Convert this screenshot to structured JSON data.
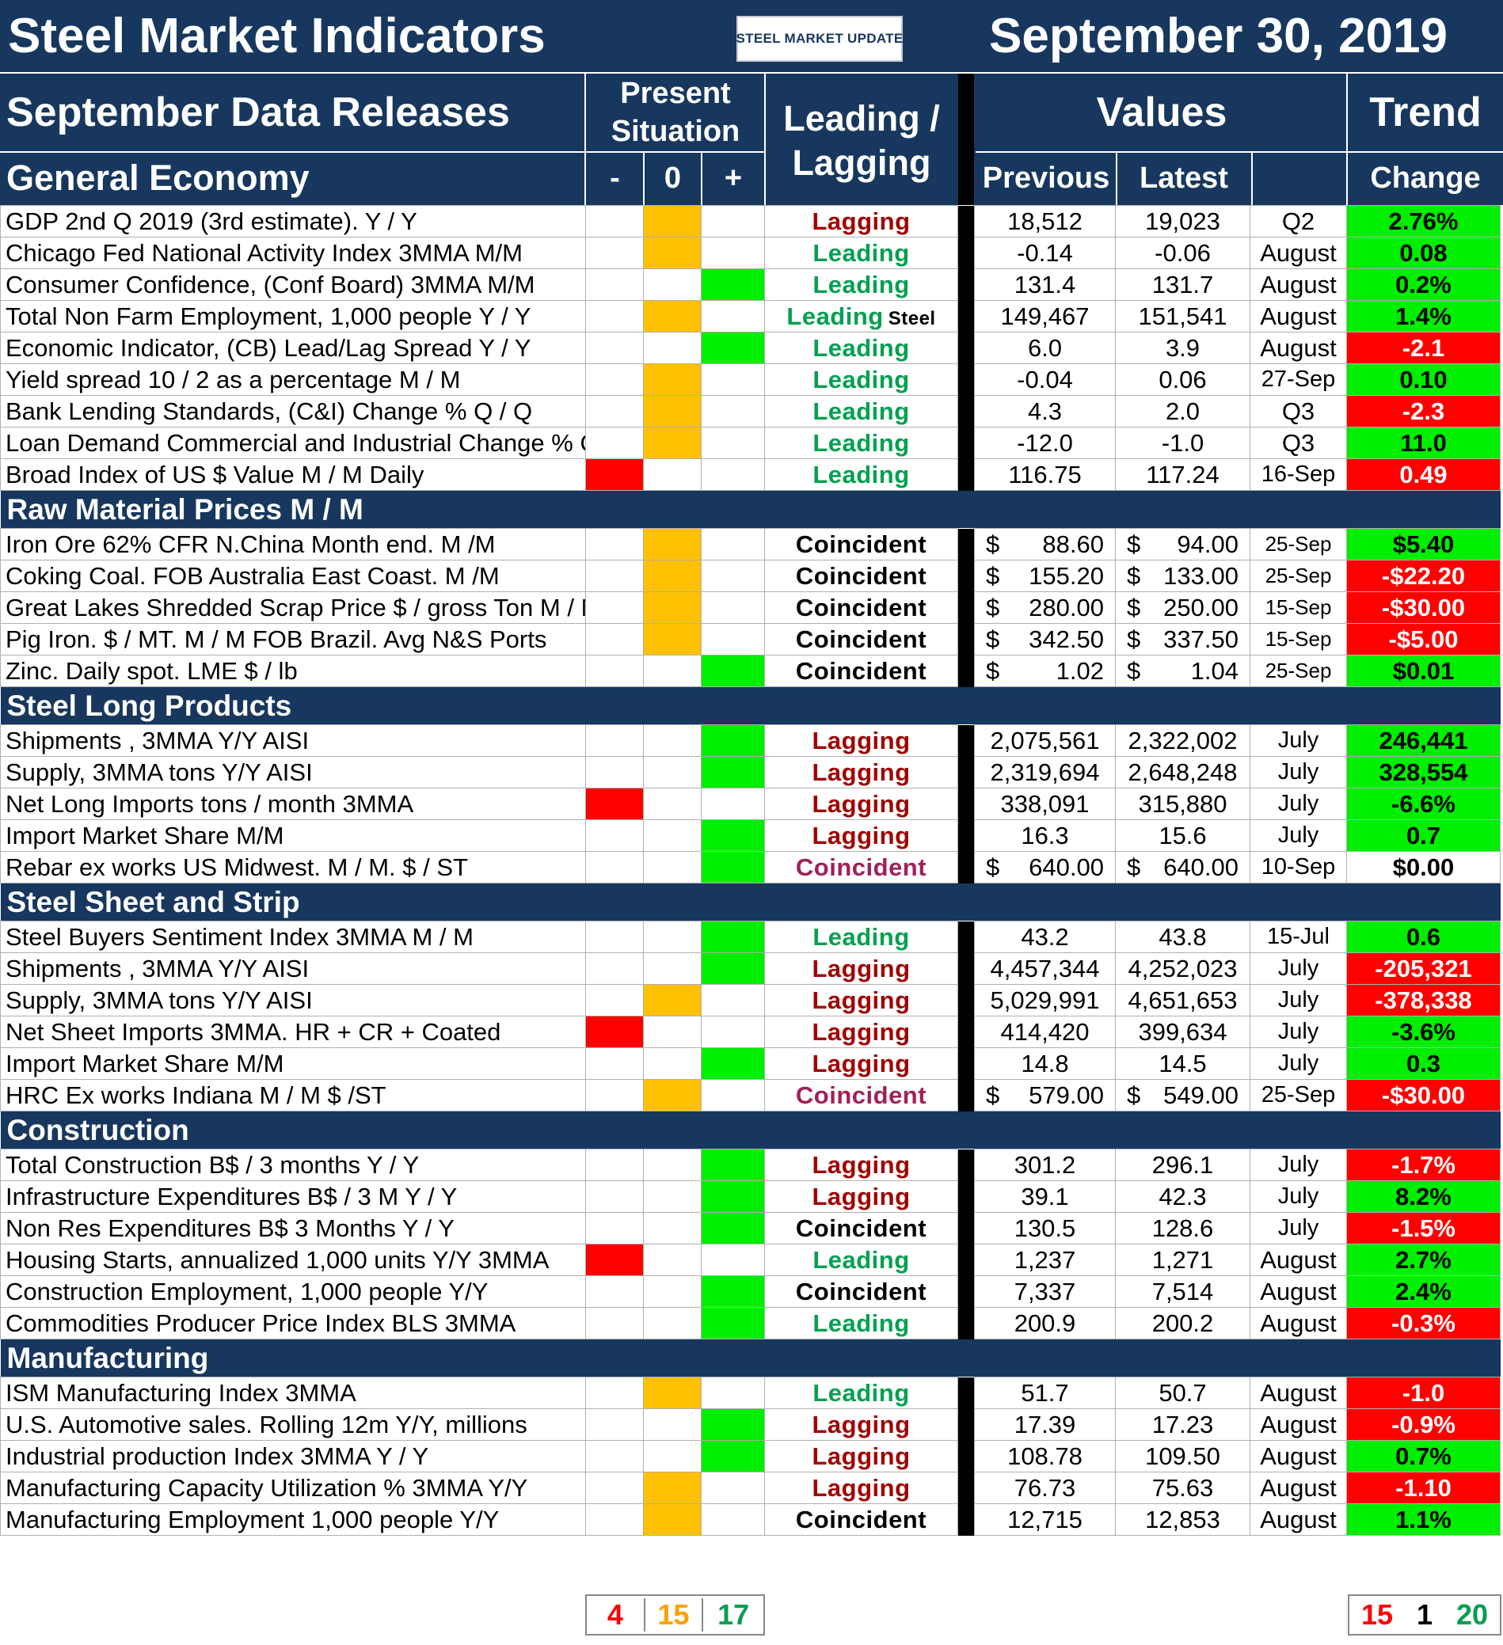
{
  "title": "Steel Market Indicators",
  "logo_text": "STEEL MARKET UPDATE",
  "date": "September 30, 2019",
  "header": {
    "releases": "September Data Releases",
    "section_first": "General Economy",
    "present": "Present Situation",
    "minus": "-",
    "zero": "0",
    "plus": "+",
    "leadlag": "Leading / Lagging",
    "values": "Values",
    "previous": "Previous",
    "latest": "Latest",
    "trend": "Trend",
    "change": "Change"
  },
  "colors": {
    "navy": "#17375e",
    "red": "#ff0000",
    "yellow": "#ffc000",
    "green": "#00ee00"
  },
  "sections": [
    {
      "name": "General Economy",
      "rows": [
        {
          "label": "GDP 2nd Q 2019 (3rd estimate). Y / Y",
          "sit": "0",
          "ll": "Lagging",
          "prev": "18,512",
          "latest": "19,023",
          "period": "Q2",
          "change": "2.76%",
          "trend": "up"
        },
        {
          "label": "Chicago Fed National Activity Index 3MMA M/M",
          "sit": "0",
          "ll": "Leading",
          "prev": "-0.14",
          "latest": "-0.06",
          "period": "August",
          "change": "0.08",
          "trend": "up"
        },
        {
          "label": "Consumer Confidence, (Conf Board) 3MMA M/M",
          "sit": "+",
          "ll": "Leading",
          "prev": "131.4",
          "latest": "131.7",
          "period": "August",
          "change": "0.2%",
          "trend": "up"
        },
        {
          "label": "Total Non Farm Employment, 1,000 people Y / Y",
          "sit": "0",
          "ll": "Leading",
          "ll_suffix": "Steel",
          "prev": "149,467",
          "latest": "151,541",
          "period": "August",
          "change": "1.4%",
          "trend": "up"
        },
        {
          "label": "Economic Indicator, (CB) Lead/Lag Spread Y / Y",
          "sit": "+",
          "ll": "Leading",
          "prev": "6.0",
          "latest": "3.9",
          "period": "August",
          "change": "-2.1",
          "trend": "down"
        },
        {
          "label": "Yield spread 10 / 2 as a percentage M / M",
          "sit": "0",
          "ll": "Leading",
          "prev": "-0.04",
          "latest": "0.06",
          "period": "27-Sep",
          "change": "0.10",
          "trend": "up"
        },
        {
          "label": "Bank Lending Standards, (C&I) Change % Q / Q",
          "sit": "0",
          "ll": "Leading",
          "prev": "4.3",
          "latest": "2.0",
          "period": "Q3",
          "change": "-2.3",
          "trend": "down"
        },
        {
          "label": "Loan Demand Commercial and Industrial Change % Q / Q",
          "sit": "0",
          "ll": "Leading",
          "prev": "-12.0",
          "latest": "-1.0",
          "period": "Q3",
          "change": "11.0",
          "trend": "up"
        },
        {
          "label": "Broad Index of US $ Value M / M Daily",
          "sit": "-",
          "ll": "Leading",
          "prev": "116.75",
          "latest": "117.24",
          "period": "16-Sep",
          "change": "0.49",
          "trend": "down"
        }
      ]
    },
    {
      "name": "Raw Material Prices M / M",
      "rows": [
        {
          "label": "Iron Ore 62% CFR N.China Month end. M /M",
          "sit": "0",
          "ll": "Coincident",
          "dollar": true,
          "prev": "88.60",
          "latest": "94.00",
          "period": "25-Sep",
          "change": "$5.40",
          "trend": "up"
        },
        {
          "label": "Coking Coal. FOB Australia East Coast. M /M",
          "sit": "0",
          "ll": "Coincident",
          "dollar": true,
          "prev": "155.20",
          "latest": "133.00",
          "period": "25-Sep",
          "change": "-$22.20",
          "trend": "down"
        },
        {
          "label": "Great Lakes Shredded Scrap Price $ / gross Ton M / M",
          "sit": "0",
          "ll": "Coincident",
          "dollar": true,
          "prev": "280.00",
          "latest": "250.00",
          "period": "15-Sep",
          "change": "-$30.00",
          "trend": "down"
        },
        {
          "label": "Pig Iron. $ / MT. M / M FOB Brazil. Avg N&S Ports",
          "sit": "0",
          "ll": "Coincident",
          "dollar": true,
          "prev": "342.50",
          "latest": "337.50",
          "period": "15-Sep",
          "change": "-$5.00",
          "trend": "down"
        },
        {
          "label": "Zinc. Daily spot. LME $ / lb",
          "sit": "+",
          "ll": "Coincident",
          "dollar": true,
          "prev": "1.02",
          "latest": "1.04",
          "period": "25-Sep",
          "change": "$0.01",
          "trend": "up"
        }
      ]
    },
    {
      "name": "Steel Long Products",
      "rows": [
        {
          "label": "Shipments , 3MMA Y/Y AISI",
          "sit": "+",
          "ll": "Lagging",
          "prev": "2,075,561",
          "latest": "2,322,002",
          "period": "July",
          "change": "246,441",
          "trend": "up"
        },
        {
          "label": "Supply, 3MMA tons Y/Y AISI",
          "sit": "+",
          "ll": "Lagging",
          "prev": "2,319,694",
          "latest": "2,648,248",
          "period": "July",
          "change": "328,554",
          "trend": "up"
        },
        {
          "label": "Net Long Imports tons / month 3MMA",
          "sit": "-",
          "ll": "Lagging",
          "prev": "338,091",
          "latest": "315,880",
          "period": "July",
          "change": "-6.6%",
          "trend": "up"
        },
        {
          "label": "Import Market Share  M/M",
          "sit": "+",
          "ll": "Lagging",
          "prev": "16.3",
          "latest": "15.6",
          "period": "July",
          "change": "0.7",
          "trend": "up"
        },
        {
          "label": "Rebar ex works US  Midwest. M / M. $ / ST",
          "sit": "+",
          "ll": "Coincident",
          "dollar": true,
          "prev": "640.00",
          "latest": "640.00",
          "period": "10-Sep",
          "change": "$0.00",
          "trend": "flat"
        }
      ]
    },
    {
      "name": "Steel Sheet and Strip",
      "rows": [
        {
          "label": "Steel Buyers Sentiment Index 3MMA M / M",
          "sit": "+",
          "ll": "Leading",
          "prev": "43.2",
          "latest": "43.8",
          "period": "15-Jul",
          "change": "0.6",
          "trend": "up"
        },
        {
          "label": "Shipments , 3MMA Y/Y AISI",
          "sit": "+",
          "ll": "Lagging",
          "prev": "4,457,344",
          "latest": "4,252,023",
          "period": "July",
          "change": "-205,321",
          "trend": "down"
        },
        {
          "label": "Supply, 3MMA tons Y/Y AISI",
          "sit": "0",
          "ll": "Lagging",
          "prev": "5,029,991",
          "latest": "4,651,653",
          "period": "July",
          "change": "-378,338",
          "trend": "down"
        },
        {
          "label": "Net Sheet Imports  3MMA. HR + CR + Coated",
          "sit": "-",
          "ll": "Lagging",
          "prev": "414,420",
          "latest": "399,634",
          "period": "July",
          "change": "-3.6%",
          "trend": "up"
        },
        {
          "label": "Import Market Share M/M",
          "sit": "+",
          "ll": "Lagging",
          "prev": "14.8",
          "latest": "14.5",
          "period": "July",
          "change": "0.3",
          "trend": "up"
        },
        {
          "label": "HRC Ex works Indiana M / M $ /ST",
          "sit": "0",
          "ll": "Coincident",
          "dollar": true,
          "prev": "579.00",
          "latest": "549.00",
          "period": "25-Sep",
          "change": "-$30.00",
          "trend": "down"
        }
      ]
    },
    {
      "name": "Construction",
      "rows": [
        {
          "label": "Total Construction B$ /  3 months Y / Y",
          "sit": "+",
          "ll": "Lagging",
          "prev": "301.2",
          "latest": "296.1",
          "period": "July",
          "change": "-1.7%",
          "trend": "down"
        },
        {
          "label": "Infrastructure Expenditures B$ / 3 M    Y / Y",
          "sit": "+",
          "ll": "Lagging",
          "prev": "39.1",
          "latest": "42.3",
          "period": "July",
          "change": "8.2%",
          "trend": "up"
        },
        {
          "label": "Non Res Expenditures B$  3 Months   Y / Y",
          "sit": "+",
          "ll": "Coincident",
          "prev": "130.5",
          "latest": "128.6",
          "period": "July",
          "change": "-1.5%",
          "trend": "down"
        },
        {
          "label": "Housing Starts, annualized 1,000 units Y/Y 3MMA",
          "sit": "-",
          "ll": "Leading",
          "prev": "1,237",
          "latest": "1,271",
          "period": "August",
          "change": "2.7%",
          "trend": "up"
        },
        {
          "label": "Construction Employment, 1,000 people Y/Y",
          "sit": "+",
          "ll": "Coincident",
          "prev": "7,337",
          "latest": "7,514",
          "period": "August",
          "change": "2.4%",
          "trend": "up"
        },
        {
          "label": "Commodities Producer Price Index BLS 3MMA",
          "sit": "+",
          "ll": "Leading",
          "prev": "200.9",
          "latest": "200.2",
          "period": "August",
          "change": "-0.3%",
          "trend": "down"
        }
      ]
    },
    {
      "name": "Manufacturing",
      "rows": [
        {
          "label": "ISM Manufacturing Index 3MMA",
          "sit": "0",
          "ll": "Leading",
          "prev": "51.7",
          "latest": "50.7",
          "period": "August",
          "change": "-1.0",
          "trend": "down"
        },
        {
          "label": "U.S. Automotive sales. Rolling 12m Y/Y, millions",
          "sit": "+",
          "ll": "Lagging",
          "prev": "17.39",
          "latest": "17.23",
          "period": "August",
          "change": "-0.9%",
          "trend": "down"
        },
        {
          "label": "Industrial production Index 3MMA Y / Y",
          "sit": "+",
          "ll": "Lagging",
          "prev": "108.78",
          "latest": "109.50",
          "period": "August",
          "change": "0.7%",
          "trend": "up"
        },
        {
          "label": "Manufacturing Capacity Utilization % 3MMA Y/Y",
          "sit": "0",
          "ll": "Lagging",
          "prev": "76.73",
          "latest": "75.63",
          "period": "August",
          "change": "-1.10",
          "trend": "down"
        },
        {
          "label": "Manufacturing Employment 1,000 people Y/Y",
          "sit": "0",
          "ll": "Coincident",
          "prev": "12,715",
          "latest": "12,853",
          "period": "August",
          "change": "1.1%",
          "trend": "up"
        }
      ]
    }
  ],
  "totals": {
    "situation": {
      "minus": "4",
      "zero": "15",
      "plus": "17"
    },
    "trend": {
      "down": "15",
      "flat": "1",
      "up": "20"
    }
  }
}
